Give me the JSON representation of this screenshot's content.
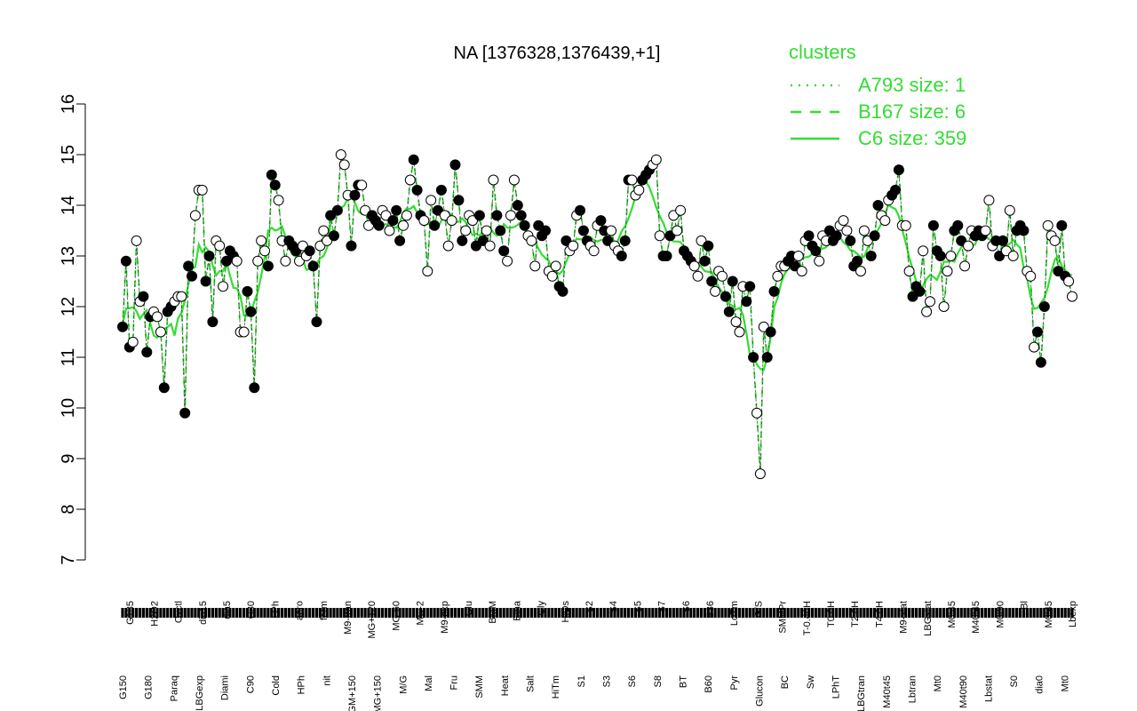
{
  "chart_data": {
    "type": "line",
    "title": "NA [1376328,1376439,+1]",
    "xlabel": "",
    "ylabel": "",
    "ylim": [
      7,
      16
    ],
    "yticks": [
      7,
      8,
      9,
      10,
      11,
      12,
      13,
      14,
      15,
      16
    ],
    "grid": false,
    "legend": {
      "position": "top-right",
      "title": "clusters",
      "entries": [
        {
          "name": "A793 size: 1",
          "style": "dotted"
        },
        {
          "name": "B167 size: 6",
          "style": "dashed"
        },
        {
          "name": "C6 size: 359",
          "style": "solid"
        }
      ]
    },
    "tick_labels_upper": [
      "G135",
      "H2O2",
      "Oxctl",
      "dia15",
      "dia5",
      "C30",
      "LPh",
      "aero",
      "ferm",
      "M9-tran",
      "MG+120",
      "MG-60",
      "MG-2",
      "M9-exp",
      "Glu",
      "BMM",
      "Etha",
      "Gly",
      "HiOs",
      "S2",
      "S4",
      "S5",
      "S7",
      "S6",
      "B36",
      "LoTm",
      "G/S",
      "SMMPr",
      "T-0.40H",
      "T0.0H",
      "T2.0H",
      "T4.0H",
      "M9-stat",
      "LBGstat",
      "M0t45",
      "M40t45",
      "M0t90",
      "Bl",
      "M0t45",
      "Lbexp"
    ],
    "tick_labels_lower": [
      "G150",
      "G180",
      "Paraq",
      "LBGexp",
      "Diami",
      "C90",
      "Cold",
      "HPh",
      "nit",
      "GM+150",
      "MG+150",
      "M/G",
      "Mal",
      "Fru",
      "SMM",
      "Heat",
      "Salt",
      "HiTm",
      "S1",
      "S3",
      "S6",
      "S8",
      "BT",
      "B60",
      "Pyr",
      "Glucon",
      "BC",
      "Sw",
      "LPhT",
      "LBGtran",
      "M40t45",
      "Lbtran",
      "Mt0",
      "M40t90",
      "Lbstat",
      "S0",
      "dia0",
      "Mt0"
    ],
    "colors": {
      "line": "#33dd33",
      "point_fill_dark": "#000000",
      "point_fill_light": "#ffffff"
    },
    "series": [
      {
        "values": [
          11.6,
          12.9,
          11.2,
          11.3,
          13.3,
          12.1,
          12.2,
          11.1,
          11.8,
          11.9,
          11.8,
          11.5,
          10.4,
          11.9,
          12.0,
          12.1,
          12.2,
          12.2,
          9.9,
          12.8,
          12.6,
          13.8,
          14.3,
          14.3,
          12.5,
          13.0,
          11.7,
          13.3,
          13.2,
          12.4,
          12.9,
          13.1,
          13.0,
          12.9,
          11.5,
          11.5,
          12.3,
          11.9,
          10.4,
          12.9,
          13.3,
          13.1,
          12.8,
          14.6,
          14.4,
          14.1,
          13.3,
          12.9,
          13.3,
          13.2,
          13.1,
          12.9,
          13.2,
          13.0,
          13.1,
          12.8,
          11.7,
          13.2,
          13.5,
          13.3,
          13.8,
          13.4,
          13.9,
          15.0,
          14.8,
          14.2,
          13.2,
          14.2,
          14.4,
          14.4,
          13.9,
          13.6,
          13.8,
          13.7,
          13.6,
          13.9,
          13.8,
          13.5,
          13.7,
          13.9,
          13.3,
          13.6,
          13.8,
          14.5,
          14.9,
          14.3,
          13.8,
          13.7,
          12.7,
          14.1,
          13.6,
          13.9,
          14.3,
          13.8,
          13.2,
          13.7,
          14.8,
          14.1,
          13.3,
          13.5,
          13.8,
          13.7,
          13.2,
          13.8,
          13.3,
          13.5,
          13.2,
          14.5,
          13.8,
          13.5,
          13.1,
          12.9,
          13.8,
          14.5,
          14.0,
          13.8,
          13.6,
          13.4,
          13.3,
          12.8,
          13.6,
          13.4,
          13.5,
          12.7,
          12.6,
          12.8,
          12.4,
          12.3,
          13.3,
          13.1,
          13.2,
          13.8,
          13.9,
          13.5,
          13.3,
          13.2,
          13.1,
          13.6,
          13.7,
          13.5,
          13.3,
          13.5,
          13.2,
          13.1,
          13.0,
          13.3,
          14.5,
          14.5,
          14.2,
          14.3,
          14.5,
          14.6,
          14.7,
          14.8,
          14.9,
          13.4,
          13.0,
          13.0,
          13.4,
          13.8,
          13.5,
          13.9,
          13.1,
          13.0,
          12.9,
          12.8,
          12.6,
          13.3,
          12.9,
          13.2,
          12.5,
          12.3,
          12.7,
          12.6,
          12.2,
          11.9,
          12.5,
          11.7,
          11.5,
          12.4,
          12.1,
          12.4,
          11.0,
          9.9,
          8.7,
          11.6,
          11.0,
          11.5,
          12.3,
          12.6,
          12.8,
          12.8,
          12.9,
          13.0,
          12.8,
          13.0,
          12.7,
          13.3,
          13.4,
          13.2,
          13.1,
          12.9,
          13.4,
          13.3,
          13.5,
          13.3,
          13.4,
          13.6,
          13.7,
          13.5,
          13.3,
          12.8,
          12.9,
          12.7,
          13.5,
          13.3,
          13.0,
          13.4,
          14.0,
          13.8,
          13.7,
          14.1,
          14.2,
          14.3,
          14.7,
          13.6,
          13.6,
          12.7,
          12.2,
          12.4,
          12.3,
          13.1,
          11.9,
          12.1,
          13.6,
          13.1,
          13.0,
          12.0,
          12.7,
          13.0,
          13.5,
          13.6,
          13.3,
          12.8,
          13.2,
          13.5,
          13.4,
          13.5,
          13.4,
          13.5,
          14.1,
          13.2,
          13.3,
          13.0,
          13.3,
          13.1,
          13.9,
          13.0,
          13.5,
          13.6,
          13.5,
          12.7,
          12.6,
          11.2,
          11.5,
          10.9,
          12.0,
          13.6,
          13.4,
          13.3,
          12.7,
          13.6,
          12.6,
          12.5,
          12.2
        ]
      }
    ]
  }
}
